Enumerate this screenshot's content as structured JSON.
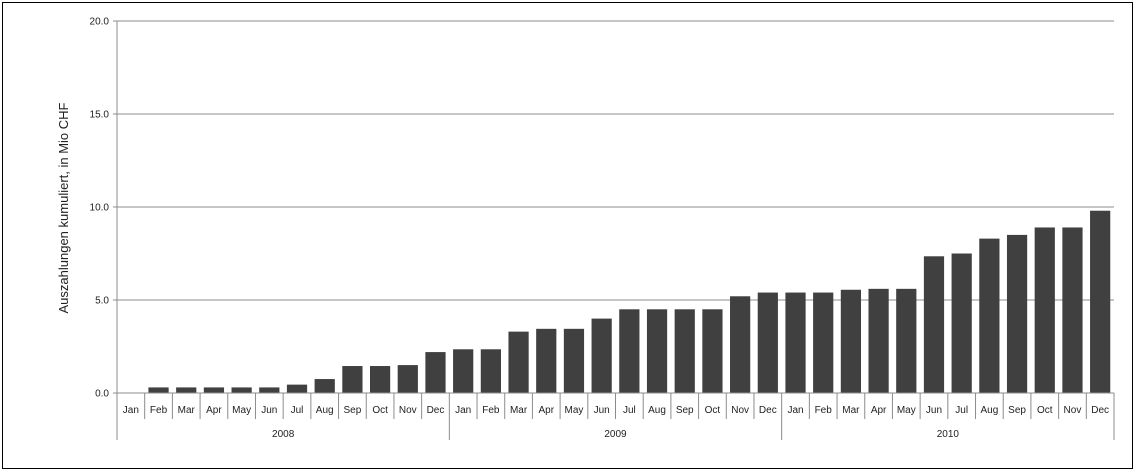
{
  "chart_data": {
    "type": "bar",
    "ylabel": "Auszahlungen kumuliert, in Mio CHF",
    "ylim": [
      0,
      20
    ],
    "yticks": [
      "0.0",
      "5.0",
      "10.0",
      "15.0",
      "20.0"
    ],
    "grid": true,
    "bar_color": "#404040",
    "years": [
      "2008",
      "2009",
      "2010"
    ],
    "categories": [
      "Jan",
      "Feb",
      "Mar",
      "Apr",
      "May",
      "Jun",
      "Jul",
      "Aug",
      "Sep",
      "Oct",
      "Nov",
      "Dec",
      "Jan",
      "Feb",
      "Mar",
      "Apr",
      "May",
      "Jun",
      "Jul",
      "Aug",
      "Sep",
      "Oct",
      "Nov",
      "Dec",
      "Jan",
      "Feb",
      "Mar",
      "Apr",
      "May",
      "Jun",
      "Jul",
      "Aug",
      "Sep",
      "Oct",
      "Nov",
      "Dec"
    ],
    "values": [
      0.0,
      0.3,
      0.3,
      0.3,
      0.3,
      0.3,
      0.45,
      0.75,
      1.45,
      1.45,
      1.5,
      2.2,
      2.35,
      2.35,
      3.3,
      3.45,
      3.45,
      4.0,
      4.5,
      4.5,
      4.5,
      4.5,
      5.2,
      5.4,
      5.4,
      5.4,
      5.55,
      5.6,
      5.6,
      7.35,
      7.5,
      8.3,
      8.5,
      8.9,
      8.9,
      9.8
    ]
  }
}
